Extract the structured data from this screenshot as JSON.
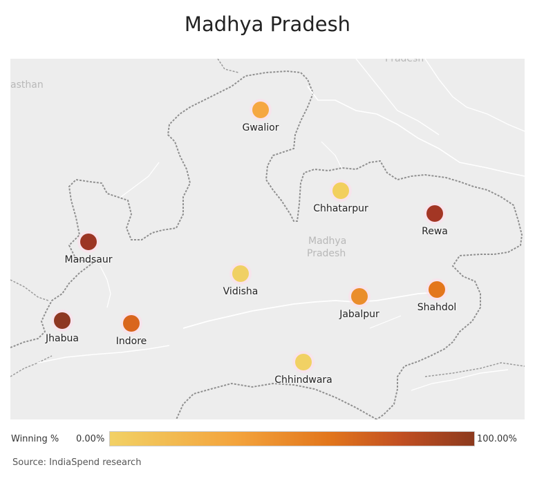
{
  "title": "Madhya Pradesh",
  "basemap_labels": {
    "rajasthan": "asthan",
    "uttar_pradesh": "Pradesh",
    "madhya_pradesh_line1": "Madhya",
    "madhya_pradesh_line2": "Pradesh"
  },
  "cities": [
    {
      "name": "Gwalior",
      "color": "#f5a742"
    },
    {
      "name": "Chhatarpur",
      "color": "#f2cf5e"
    },
    {
      "name": "Rewa",
      "color": "#a33624"
    },
    {
      "name": "Mandsaur",
      "color": "#9c3524"
    },
    {
      "name": "Vidisha",
      "color": "#f0d064"
    },
    {
      "name": "Jabalpur",
      "color": "#ea8d2c"
    },
    {
      "name": "Shahdol",
      "color": "#e3761c"
    },
    {
      "name": "Jhabua",
      "color": "#8e3722"
    },
    {
      "name": "Indore",
      "color": "#d9661e"
    },
    {
      "name": "Chhindwara",
      "color": "#f1d164"
    }
  ],
  "legend": {
    "title": "Winning %",
    "min_label": "0.00%",
    "max_label": "100.00%",
    "min_color": "#f2d165",
    "max_color": "#8c3a1e"
  },
  "source": "Source: IndiaSpend research"
}
